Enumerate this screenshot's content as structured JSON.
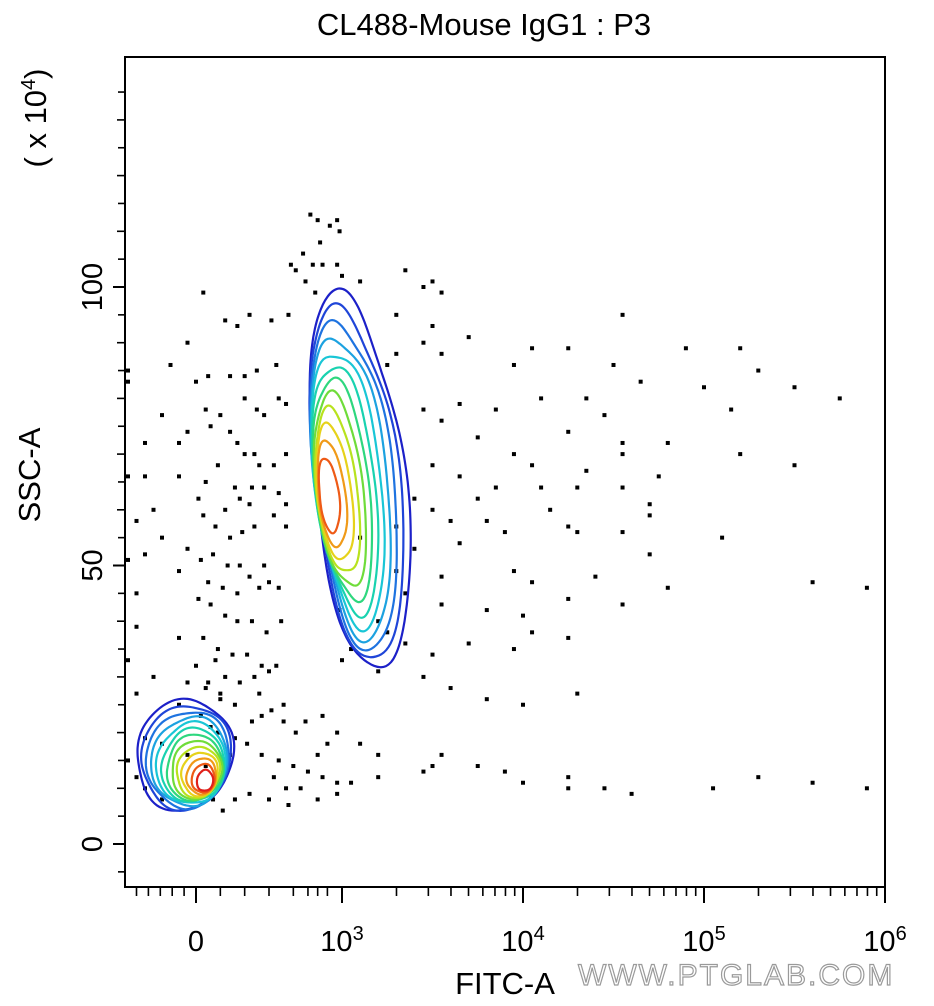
{
  "chart_data": {
    "type": "contour",
    "title": "CL488-Mouse IgG1 : P3",
    "xlabel": "FITC-A",
    "ylabel": "SSC-A",
    "y_multiplier": "( x 10",
    "y_multiplier_exp": "4",
    "x_scale": "biexponential",
    "y_scale": "linear",
    "xlim": [
      -0.4,
      6
    ],
    "ylim": [
      -8,
      140
    ],
    "grid": false,
    "legend": "none",
    "x_ticks": [
      {
        "value": 0,
        "label": "0",
        "exp": ""
      },
      {
        "value": 3,
        "label": "10",
        "exp": "3"
      },
      {
        "value": 4,
        "label": "10",
        "exp": "4"
      },
      {
        "value": 5,
        "label": "10",
        "exp": "5"
      },
      {
        "value": 6,
        "label": "10",
        "exp": "6"
      }
    ],
    "y_ticks": [
      {
        "value": 0,
        "label": "0"
      },
      {
        "value": 50,
        "label": "50"
      },
      {
        "value": 100,
        "label": "100"
      }
    ],
    "populations": [
      {
        "name": "",
        "center_x": 2.68,
        "center_y": 62,
        "outer_x_range": [
          2.42,
          3.35
        ],
        "outer_y_range": [
          31,
          99
        ]
      },
      {
        "name": "",
        "center_x": 0.22,
        "center_y": 11,
        "outer_x_range": [
          -0.35,
          0.75
        ],
        "outer_y_range": [
          6,
          26
        ]
      }
    ],
    "contour_colors": [
      "#1c20c8",
      "#1f45d8",
      "#1e73e0",
      "#1ca2e0",
      "#19c6d6",
      "#19d2b0",
      "#2ed77e",
      "#6fdc3a",
      "#b8e21e",
      "#e6d21a",
      "#f09a18",
      "#ee5a16",
      "#e0201a"
    ],
    "points": [
      [
        2.35,
        113
      ],
      [
        2.5,
        112
      ],
      [
        2.75,
        111
      ],
      [
        2.9,
        112
      ],
      [
        2.95,
        110
      ],
      [
        2.55,
        108
      ],
      [
        2.2,
        106
      ],
      [
        2.4,
        104
      ],
      [
        2.6,
        104
      ],
      [
        2.9,
        104
      ],
      [
        3.0,
        102
      ],
      [
        3.35,
        103
      ],
      [
        3.1,
        101
      ],
      [
        3.45,
        100
      ],
      [
        3.55,
        99
      ],
      [
        3.5,
        101
      ],
      [
        1.95,
        104
      ],
      [
        2.05,
        103
      ],
      [
        2.25,
        101
      ],
      [
        2.45,
        99
      ],
      [
        0.15,
        99
      ],
      [
        0.6,
        94
      ],
      [
        0.85,
        93
      ],
      [
        1.1,
        95
      ],
      [
        1.55,
        94
      ],
      [
        1.9,
        95
      ],
      [
        3.3,
        95
      ],
      [
        3.5,
        93
      ],
      [
        3.45,
        90
      ],
      [
        3.3,
        88
      ],
      [
        3.25,
        86
      ],
      [
        3.55,
        88
      ],
      [
        3.7,
        91
      ],
      [
        3.95,
        86
      ],
      [
        4.05,
        89
      ],
      [
        4.25,
        89
      ],
      [
        4.5,
        86
      ],
      [
        4.65,
        83
      ],
      [
        5.0,
        82
      ],
      [
        -0.4,
        85
      ],
      [
        -0.15,
        86
      ],
      [
        -0.4,
        83
      ],
      [
        0.0,
        83
      ],
      [
        0.25,
        84
      ],
      [
        0.7,
        84
      ],
      [
        1.0,
        84
      ],
      [
        1.25,
        85
      ],
      [
        1.65,
        86
      ],
      [
        4.55,
        95
      ],
      [
        4.9,
        89
      ],
      [
        5.2,
        89
      ],
      [
        -0.05,
        90
      ],
      [
        -0.2,
        77
      ],
      [
        0.2,
        78
      ],
      [
        0.5,
        77
      ],
      [
        1.0,
        80
      ],
      [
        1.25,
        78
      ],
      [
        1.4,
        77
      ],
      [
        1.7,
        80
      ],
      [
        1.85,
        79
      ],
      [
        3.55,
        76
      ],
      [
        3.45,
        78
      ],
      [
        3.65,
        79
      ],
      [
        3.85,
        78
      ],
      [
        4.1,
        80
      ],
      [
        4.35,
        80
      ],
      [
        4.45,
        77
      ],
      [
        3.75,
        73
      ],
      [
        3.95,
        70
      ],
      [
        4.25,
        74
      ],
      [
        4.55,
        72
      ],
      [
        4.8,
        72
      ],
      [
        5.15,
        78
      ],
      [
        5.2,
        70
      ],
      [
        5.5,
        68
      ],
      [
        -0.3,
        72
      ],
      [
        -0.1,
        72
      ],
      [
        -0.05,
        74
      ],
      [
        0.3,
        75
      ],
      [
        0.7,
        74
      ],
      [
        0.85,
        72
      ],
      [
        1.0,
        70
      ],
      [
        1.2,
        70
      ],
      [
        1.3,
        68
      ],
      [
        1.6,
        68
      ],
      [
        1.85,
        70
      ],
      [
        3.5,
        68
      ],
      [
        3.65,
        66
      ],
      [
        3.85,
        64
      ],
      [
        4.05,
        68
      ],
      [
        4.1,
        64
      ],
      [
        4.35,
        67
      ],
      [
        4.55,
        70
      ],
      [
        4.7,
        61
      ],
      [
        4.7,
        59
      ],
      [
        -0.4,
        66
      ],
      [
        -0.3,
        66
      ],
      [
        -0.1,
        66
      ],
      [
        0.2,
        65
      ],
      [
        0.45,
        68
      ],
      [
        0.8,
        64
      ],
      [
        1.15,
        64
      ],
      [
        1.4,
        64
      ],
      [
        1.7,
        63
      ],
      [
        1.85,
        61
      ],
      [
        3.4,
        62
      ],
      [
        3.5,
        60
      ],
      [
        3.6,
        58
      ],
      [
        3.65,
        54
      ],
      [
        3.8,
        58
      ],
      [
        3.9,
        56
      ],
      [
        4.15,
        60
      ],
      [
        4.3,
        56
      ],
      [
        4.55,
        56
      ],
      [
        4.7,
        52
      ],
      [
        5.1,
        55
      ],
      [
        -0.25,
        60
      ],
      [
        0.15,
        59
      ],
      [
        0.4,
        57
      ],
      [
        0.7,
        55
      ],
      [
        0.95,
        56
      ],
      [
        1.2,
        57
      ],
      [
        1.6,
        59
      ],
      [
        1.85,
        57
      ],
      [
        -0.05,
        53
      ],
      [
        0.1,
        51
      ],
      [
        0.35,
        52
      ],
      [
        0.65,
        50
      ],
      [
        0.9,
        50
      ],
      [
        1.4,
        50
      ],
      [
        -0.3,
        52
      ],
      [
        -0.1,
        49
      ],
      [
        -0.4,
        51
      ],
      [
        0.25,
        47
      ],
      [
        0.55,
        46
      ],
      [
        0.85,
        45
      ],
      [
        1.1,
        48
      ],
      [
        1.3,
        46
      ],
      [
        1.5,
        47
      ],
      [
        1.7,
        46
      ],
      [
        3.35,
        45
      ],
      [
        3.55,
        43
      ],
      [
        3.8,
        42
      ],
      [
        4.0,
        41
      ],
      [
        4.25,
        44
      ],
      [
        4.55,
        43
      ],
      [
        4.8,
        46
      ],
      [
        -0.35,
        45
      ],
      [
        0.05,
        44
      ],
      [
        0.3,
        43
      ],
      [
        0.6,
        41
      ],
      [
        0.85,
        40
      ],
      [
        1.15,
        40
      ],
      [
        1.45,
        38
      ],
      [
        1.75,
        40
      ],
      [
        3.25,
        38
      ],
      [
        3.35,
        36
      ],
      [
        3.5,
        34
      ],
      [
        3.7,
        36
      ],
      [
        3.95,
        35
      ],
      [
        4.05,
        38
      ],
      [
        4.25,
        37
      ],
      [
        -0.35,
        39
      ],
      [
        -0.1,
        37
      ],
      [
        0.15,
        37
      ],
      [
        0.45,
        35
      ],
      [
        0.75,
        34
      ],
      [
        1.05,
        34
      ],
      [
        1.35,
        32
      ],
      [
        1.65,
        32
      ],
      [
        3.0,
        33
      ],
      [
        3.2,
        31
      ],
      [
        3.45,
        30
      ],
      [
        3.6,
        28
      ],
      [
        -0.4,
        33
      ],
      [
        -0.25,
        30
      ],
      [
        -0.05,
        29
      ],
      [
        0.25,
        29
      ],
      [
        0.5,
        27
      ],
      [
        0.8,
        25
      ],
      [
        1.15,
        22
      ],
      [
        1.35,
        23
      ],
      [
        1.55,
        24
      ],
      [
        1.8,
        22
      ],
      [
        2.05,
        20
      ],
      [
        2.25,
        22
      ],
      [
        2.6,
        23
      ],
      [
        2.9,
        20
      ],
      [
        3.1,
        18
      ],
      [
        3.2,
        16
      ],
      [
        3.45,
        13
      ],
      [
        3.5,
        14
      ],
      [
        3.9,
        13
      ],
      [
        4.25,
        12
      ],
      [
        4.45,
        10
      ],
      [
        -0.35,
        27
      ],
      [
        -0.1,
        25
      ],
      [
        0.1,
        23
      ],
      [
        0.3,
        21
      ],
      [
        -0.3,
        19
      ],
      [
        -0.2,
        18
      ],
      [
        -0.05,
        16
      ],
      [
        0.2,
        14
      ],
      [
        -0.4,
        15
      ],
      [
        -0.35,
        12
      ],
      [
        -0.3,
        10
      ],
      [
        -0.2,
        8
      ],
      [
        0.35,
        8
      ],
      [
        0.55,
        6
      ],
      [
        0.8,
        8
      ],
      [
        1.1,
        9
      ],
      [
        1.5,
        8
      ],
      [
        1.9,
        7
      ],
      [
        2.15,
        10
      ],
      [
        2.5,
        8
      ],
      [
        2.9,
        9
      ],
      [
        3.05,
        11
      ],
      [
        3.2,
        12
      ],
      [
        3.55,
        16
      ],
      [
        3.75,
        14
      ],
      [
        4.0,
        11
      ],
      [
        4.25,
        10
      ],
      [
        4.6,
        9
      ],
      [
        5.05,
        10
      ],
      [
        5.3,
        12
      ],
      [
        5.6,
        11
      ],
      [
        5.9,
        10
      ],
      [
        0.2,
        28
      ],
      [
        0.5,
        26
      ],
      [
        1.3,
        27
      ],
      [
        1.8,
        25
      ],
      [
        3.8,
        26
      ],
      [
        4.0,
        25
      ],
      [
        4.3,
        27
      ],
      [
        0.0,
        32
      ],
      [
        0.4,
        33
      ],
      [
        0.6,
        30
      ],
      [
        0.9,
        29
      ],
      [
        1.2,
        30
      ],
      [
        1.5,
        31
      ],
      [
        3.3,
        49
      ],
      [
        3.55,
        48
      ],
      [
        3.95,
        49
      ],
      [
        4.05,
        47
      ],
      [
        4.4,
        48
      ],
      [
        5.6,
        47
      ],
      [
        5.9,
        46
      ],
      [
        4.25,
        57
      ],
      [
        3.75,
        62
      ],
      [
        4.3,
        64
      ],
      [
        4.55,
        64
      ],
      [
        4.75,
        66
      ],
      [
        0.6,
        60
      ],
      [
        0.9,
        62
      ],
      [
        1.1,
        61
      ],
      [
        5.3,
        85
      ],
      [
        5.5,
        82
      ],
      [
        5.75,
        80
      ],
      [
        6.0,
        79
      ],
      [
        -0.35,
        58
      ],
      [
        -0.2,
        55
      ],
      [
        0.05,
        62
      ],
      [
        3.1,
        55
      ],
      [
        3.3,
        57
      ],
      [
        3.4,
        53
      ],
      [
        0.45,
        20
      ],
      [
        0.8,
        19
      ],
      [
        1.05,
        18
      ],
      [
        1.35,
        16
      ],
      [
        1.7,
        15
      ],
      [
        2.0,
        14
      ],
      [
        2.3,
        13
      ],
      [
        2.6,
        12
      ],
      [
        2.9,
        11
      ],
      [
        1.6,
        12
      ],
      [
        1.85,
        10
      ],
      [
        0.7,
        16
      ],
      [
        3.05,
        35
      ],
      [
        3.2,
        40
      ],
      [
        2.95,
        42
      ],
      [
        2.5,
        16
      ],
      [
        2.7,
        18
      ]
    ]
  }
}
